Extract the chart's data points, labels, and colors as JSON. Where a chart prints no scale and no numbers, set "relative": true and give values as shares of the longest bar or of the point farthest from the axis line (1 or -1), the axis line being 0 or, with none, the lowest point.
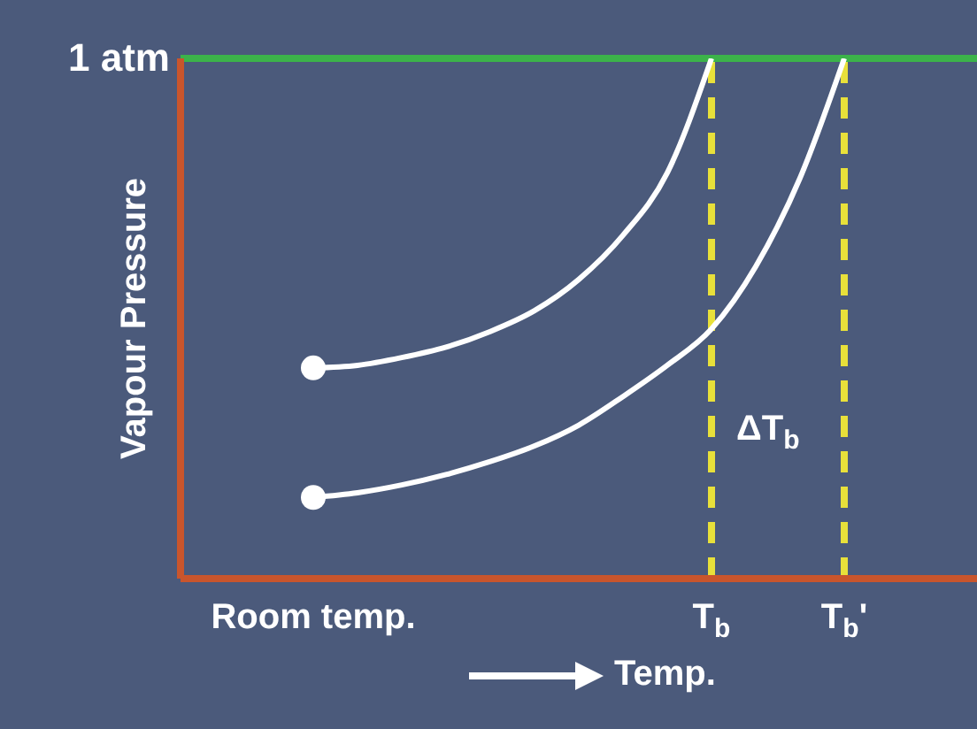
{
  "chart_data": {
    "type": "line",
    "relative": true,
    "ylabel": "Vapour Pressure",
    "xlabel": "Temp.",
    "categories": [
      null,
      null,
      null,
      "Room temp.",
      null,
      null,
      null,
      null,
      null,
      null,
      null,
      null,
      "T$_{b}$",
      null,
      null,
      "T$_{b}$'",
      null,
      null,
      null
    ],
    "series": [
      {
        "color": "#ffffff",
        "values": [
          null,
          null,
          null,
          0.405,
          0.41,
          0.425,
          0.445,
          0.475,
          0.515,
          0.575,
          0.66,
          0.78,
          1.0,
          null,
          null,
          null,
          null,
          null,
          null
        ]
      },
      {
        "color": "#ffffff",
        "values": [
          null,
          null,
          null,
          0.156,
          0.165,
          0.18,
          0.2,
          0.225,
          0.255,
          0.295,
          0.35,
          0.41,
          0.48,
          0.6,
          0.77,
          1.0,
          null,
          null,
          null
        ]
      },
      {
        "type": "scatter",
        "color": "#ffffff",
        "x": [
          "Room temp.",
          "Room temp."
        ],
        "values": [
          0.405,
          0.156
        ]
      }
    ],
    "ref_lines": [
      {
        "axis": "y",
        "value": 1,
        "label": "1 atm",
        "color": "#3cb34a"
      },
      {
        "axis": "x",
        "value": "T$_{b}$",
        "color": "#e8e03a",
        "line_style": "dashed"
      },
      {
        "axis": "x",
        "value": "T$_{b}$'",
        "color": "#e8e03a",
        "line_style": "dashed"
      }
    ],
    "annotations": [
      {
        "text": "ΔT$_{b}$",
        "x": "T$_{b}$",
        "y": 0.29
      }
    ]
  }
}
